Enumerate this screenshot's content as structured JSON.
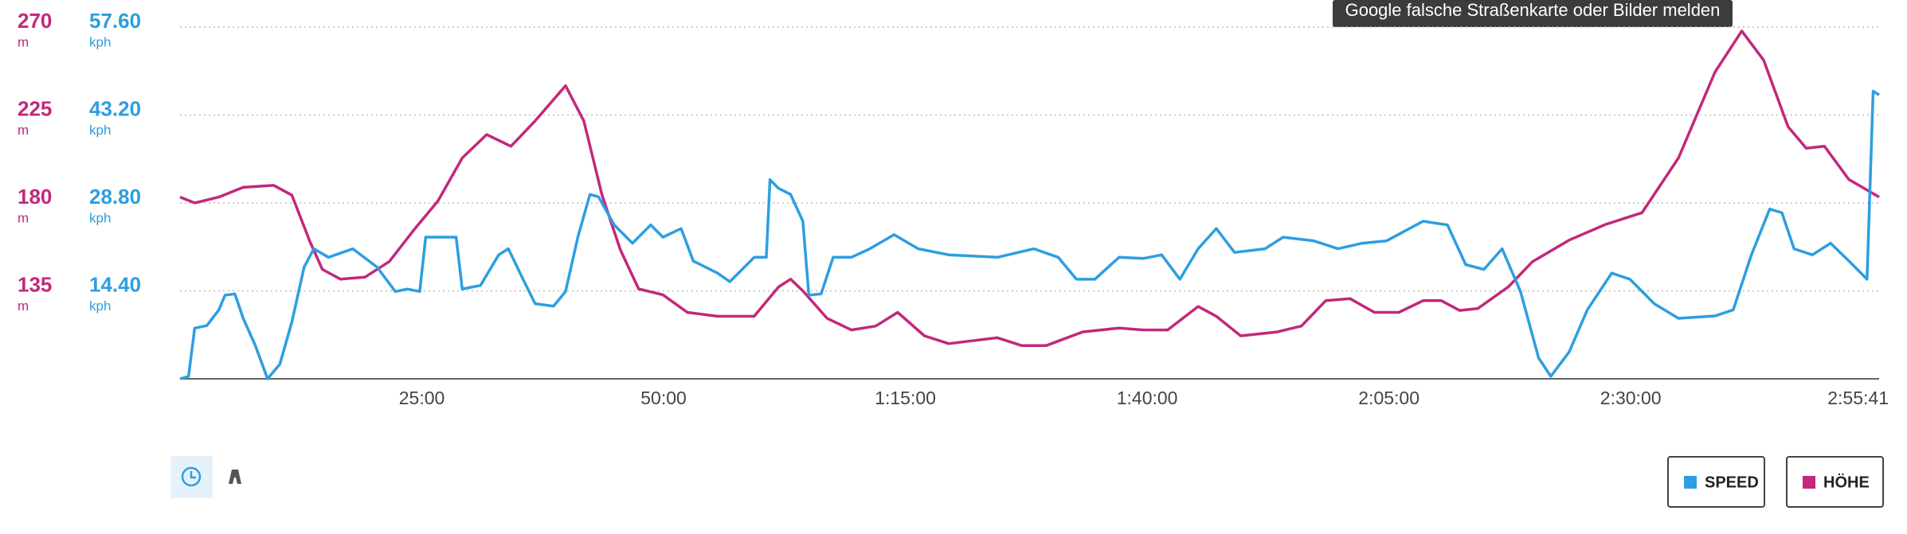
{
  "chart_data": {
    "type": "line",
    "xlim": [
      0,
      10541
    ],
    "xticks": [
      {
        "value": 1500,
        "label": "25:00"
      },
      {
        "value": 3000,
        "label": "50:00"
      },
      {
        "value": 4500,
        "label": "1:15:00"
      },
      {
        "value": 6000,
        "label": "1:40:00"
      },
      {
        "value": 7500,
        "label": "2:05:00"
      },
      {
        "value": 9000,
        "label": "2:30:00"
      },
      {
        "value": 10541,
        "label": "2:55:41"
      }
    ],
    "ylim": [
      90,
      270
    ],
    "yticks": [
      135,
      180,
      225,
      270
    ],
    "y_unit": "m",
    "y2lim": [
      0,
      57.6
    ],
    "y2ticks": [
      {
        "value": 14.4,
        "label": "14.40"
      },
      {
        "value": 28.8,
        "label": "28.80"
      },
      {
        "value": 43.2,
        "label": "43.20"
      },
      {
        "value": 57.6,
        "label": "57.60"
      }
    ],
    "y2_unit": "kph",
    "grid": true,
    "legend": "bottom-right",
    "series": [
      {
        "name": "SPEED",
        "color": "#2d9ee0",
        "axis": "y2",
        "x": [
          0,
          53,
          91,
          166,
          241,
          279,
          340,
          392,
          468,
          543,
          619,
          694,
          770,
          830,
          921,
          1072,
          1222,
          1336,
          1411,
          1487,
          1524,
          1600,
          1713,
          1751,
          1864,
          1977,
          2037,
          2128,
          2203,
          2317,
          2392,
          2468,
          2543,
          2596,
          2694,
          2807,
          2920,
          2996,
          3109,
          3184,
          3335,
          3411,
          3562,
          3637,
          3660,
          3713,
          3788,
          3864,
          3901,
          3977,
          4052,
          4165,
          4279,
          4430,
          4580,
          4769,
          5071,
          5297,
          5448,
          5561,
          5675,
          5826,
          5976,
          6090,
          6203,
          6316,
          6429,
          6542,
          6731,
          6844,
          7033,
          7184,
          7335,
          7486,
          7712,
          7863,
          7976,
          8089,
          8202,
          8316,
          8429,
          8504,
          8618,
          8731,
          8882,
          8995,
          9146,
          9296,
          9523,
          9636,
          9749,
          9862,
          9938,
          10013,
          10127,
          10240,
          10353,
          10466,
          10504,
          10541
        ],
        "values": [
          0,
          0.4,
          8.3,
          8.7,
          11.3,
          13.7,
          13.9,
          9.9,
          5.4,
          0,
          2.4,
          9.3,
          18.3,
          21.3,
          19.9,
          21.3,
          18.3,
          14.3,
          14.7,
          14.3,
          23.2,
          23.2,
          23.2,
          14.7,
          15.3,
          20.3,
          21.3,
          16.3,
          12.3,
          11.9,
          14.3,
          23.2,
          30.2,
          29.8,
          25.2,
          22.2,
          25.2,
          23.2,
          24.6,
          19.3,
          17.3,
          15.9,
          19.9,
          19.9,
          32.6,
          31.2,
          30.2,
          25.8,
          13.7,
          13.9,
          19.9,
          19.9,
          21.3,
          23.6,
          21.3,
          20.3,
          19.9,
          21.3,
          19.9,
          16.3,
          16.3,
          19.9,
          19.7,
          20.3,
          16.3,
          21.3,
          24.6,
          20.7,
          21.3,
          23.2,
          22.6,
          21.3,
          22.2,
          22.6,
          25.8,
          25.2,
          18.7,
          17.9,
          21.3,
          14.3,
          3.4,
          0.4,
          4.4,
          11.3,
          17.3,
          16.3,
          12.3,
          9.9,
          10.3,
          11.3,
          20.3,
          27.8,
          27.2,
          21.3,
          20.3,
          22.2,
          19.3,
          16.3,
          47.1,
          46.5
        ]
      },
      {
        "name": "HÖHE",
        "color": "#c2287b",
        "axis": "y",
        "x": [
          0,
          91,
          241,
          392,
          581,
          694,
          807,
          883,
          996,
          1147,
          1298,
          1449,
          1600,
          1751,
          1902,
          2053,
          2203,
          2392,
          2505,
          2618,
          2732,
          2845,
          2996,
          3147,
          3335,
          3562,
          3713,
          3788,
          3864,
          4014,
          4165,
          4316,
          4452,
          4618,
          4769,
          5071,
          5222,
          5373,
          5599,
          5826,
          5976,
          6127,
          6316,
          6429,
          6580,
          6806,
          6957,
          7108,
          7259,
          7410,
          7561,
          7712,
          7825,
          7938,
          8052,
          8240,
          8391,
          8618,
          8844,
          9070,
          9296,
          9523,
          9689,
          9825,
          9976,
          10089,
          10202,
          10353,
          10541
        ],
        "values": [
          183,
          180,
          183,
          188,
          189,
          184,
          160,
          146,
          141,
          142,
          150,
          166,
          181,
          203,
          215,
          209,
          222,
          240,
          222,
          184,
          156,
          136,
          133,
          124,
          122,
          122,
          137,
          141,
          135,
          121,
          115,
          117,
          124,
          112,
          108,
          111,
          107,
          107,
          114,
          116,
          115,
          115,
          127,
          122,
          112,
          114,
          117,
          130,
          131,
          124,
          124,
          130,
          130,
          125,
          126,
          137,
          150,
          161,
          169,
          175,
          203,
          247,
          268,
          253,
          219,
          208,
          209,
          192,
          183
        ]
      }
    ]
  },
  "tooltip": "Google falsche Straßenkarte oder Bilder melden"
}
